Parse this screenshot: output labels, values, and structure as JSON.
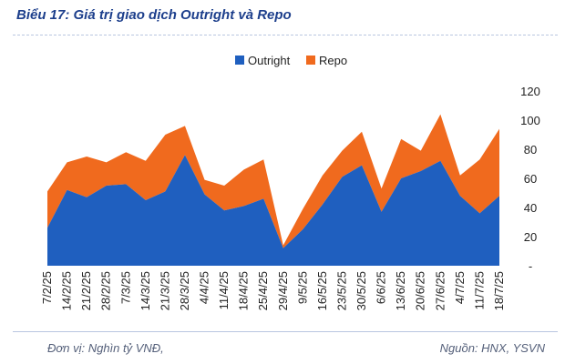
{
  "title": "Biểu 17: Giá trị giao dịch Outright và Repo",
  "footer_left": "Đơn vị: Nghìn tỷ VNĐ,",
  "footer_right": "Nguồn: HNX, YSVN",
  "colors": {
    "outright": "#1f5fbf",
    "repo": "#f06a1e",
    "title": "#1d3f8c"
  },
  "chart_data": {
    "type": "area",
    "stacked": true,
    "x": [
      "7/2/25",
      "14/2/25",
      "21/2/25",
      "28/2/25",
      "7/3/25",
      "14/3/25",
      "21/3/25",
      "28/3/25",
      "4/4/25",
      "11/4/25",
      "18/4/25",
      "25/4/25",
      "29/4/25",
      "9/5/25",
      "16/5/25",
      "23/5/25",
      "30/5/25",
      "6/6/25",
      "13/6/25",
      "20/6/25",
      "27/6/25",
      "4/7/25",
      "11/7/25",
      "18/7/25"
    ],
    "series": [
      {
        "name": "Outright",
        "values": [
          26,
          52,
          47,
          55,
          56,
          45,
          51,
          76,
          49,
          38,
          41,
          46,
          12,
          25,
          42,
          61,
          69,
          37,
          60,
          65,
          72,
          48,
          36,
          48
        ]
      },
      {
        "name": "Repo",
        "values": [
          25,
          19,
          28,
          16,
          22,
          27,
          39,
          20,
          10,
          17,
          25,
          27,
          2,
          14,
          20,
          18,
          23,
          16,
          27,
          14,
          32,
          14,
          37,
          46
        ]
      }
    ],
    "ylim": [
      0,
      120
    ],
    "yticks": [
      0,
      20,
      40,
      60,
      80,
      100,
      120
    ],
    "ytick_labels": [
      "-",
      "20",
      "40",
      "60",
      "80",
      "100",
      "120"
    ],
    "y_axis_side": "right",
    "legend_position": "top-center",
    "grid": false
  }
}
